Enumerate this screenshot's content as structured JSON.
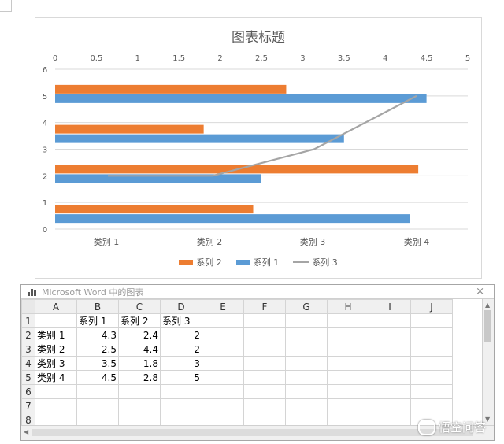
{
  "chart": {
    "title": "图表标题"
  },
  "chart_data": {
    "type": "bar",
    "orientation": "horizontal",
    "categories": [
      "类别 1",
      "类别 2",
      "类别 3",
      "类别 4"
    ],
    "series": [
      {
        "name": "系列 1",
        "values": [
          4.3,
          2.5,
          3.5,
          4.5
        ],
        "color": "#5b9bd5"
      },
      {
        "name": "系列 2",
        "values": [
          2.4,
          4.4,
          1.8,
          2.8
        ],
        "color": "#ed7d31"
      },
      {
        "name": "系列 3",
        "type": "line",
        "values": [
          2,
          2,
          3,
          5
        ],
        "color": "#a5a5a5"
      }
    ],
    "x_top_ticks": [
      "0",
      "0.5",
      "1",
      "1.5",
      "2",
      "2.5",
      "3",
      "3.5",
      "4",
      "4.5",
      "5"
    ],
    "x_top_range": [
      0,
      5
    ],
    "y_left_ticks": [
      "0",
      "1",
      "2",
      "3",
      "4",
      "5",
      "6"
    ],
    "y_left_range": [
      0,
      6
    ],
    "legend_order": [
      "系列 2",
      "系列 1",
      "系列 3"
    ],
    "legend_position": "bottom",
    "grid": true
  },
  "sheet": {
    "title": "Microsoft Word 中的图表",
    "close": "×",
    "columns": [
      "A",
      "B",
      "C",
      "D",
      "E",
      "F",
      "G",
      "H",
      "I",
      "J"
    ],
    "row_numbers": [
      "1",
      "2",
      "3",
      "4",
      "5",
      "6",
      "7",
      "8"
    ],
    "rows": [
      [
        "",
        "系列 1",
        "系列 2",
        "系列 3"
      ],
      [
        "类别 1",
        "4.3",
        "2.4",
        "2"
      ],
      [
        "类别 2",
        "2.5",
        "4.4",
        "2"
      ],
      [
        "类别 3",
        "3.5",
        "1.8",
        "3"
      ],
      [
        "类别 4",
        "4.5",
        "2.8",
        "5"
      ],
      [
        "",
        "",
        "",
        ""
      ],
      [
        "",
        "",
        "",
        ""
      ],
      [
        "",
        "",
        "",
        ""
      ]
    ]
  },
  "watermark": {
    "text": "悟空问答"
  }
}
